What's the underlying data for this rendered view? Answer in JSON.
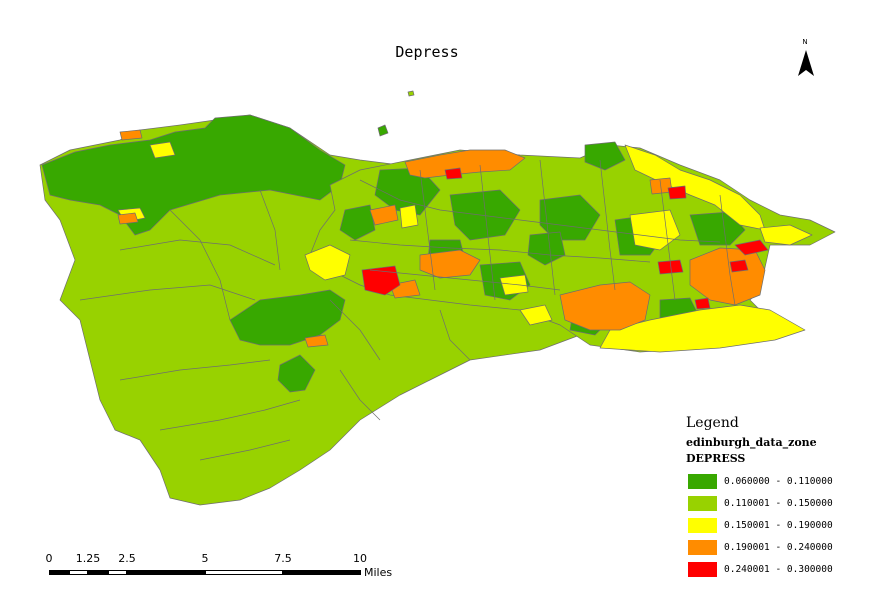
{
  "map": {
    "title": "Depress",
    "north_label": "N"
  },
  "legend": {
    "title": "Legend",
    "layer_name": "edinburgh_data_zone",
    "field_name": "DEPRESS",
    "classes": [
      {
        "label": "0.060000 - 0.110000",
        "color": "#38a800"
      },
      {
        "label": "0.110001 - 0.150000",
        "color": "#98d200"
      },
      {
        "label": "0.150001 - 0.190000",
        "color": "#ffff00"
      },
      {
        "label": "0.190001 - 0.240000",
        "color": "#ff8c00"
      },
      {
        "label": "0.240001 - 0.300000",
        "color": "#ff0000"
      }
    ]
  },
  "scalebar": {
    "ticks": [
      "0",
      "1.25",
      "2.5",
      "5",
      "7.5",
      "10"
    ],
    "tick_values": [
      0,
      1.25,
      2.5,
      5,
      7.5,
      10
    ],
    "units": "Miles"
  },
  "colors": {
    "boundary": "#6e6e6e",
    "background": "#ffffff"
  }
}
